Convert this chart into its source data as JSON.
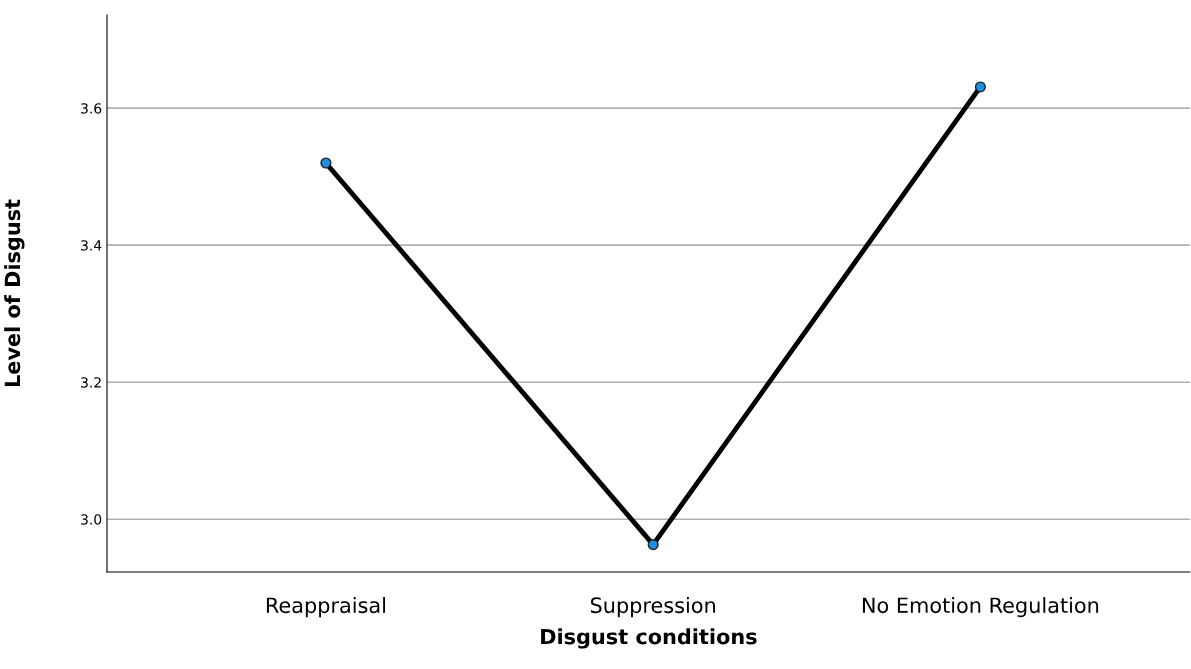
{
  "chart_data": {
    "type": "line",
    "xlabel": "Disgust conditions",
    "ylabel": "Level of Disgust",
    "categories": [
      "Reappraisal",
      "Suppression",
      "No Emotion Regulation"
    ],
    "series": [
      {
        "color": "#000000",
        "values": [
          3.52,
          2.963,
          3.631
        ]
      }
    ],
    "ylim": [
      2.923,
      3.736
    ],
    "yticks": [
      {
        "value": 3.0,
        "label": "3.0"
      },
      {
        "value": 3.2,
        "label": "3.2"
      },
      {
        "value": 3.4,
        "label": "3.4"
      },
      {
        "value": 3.6,
        "label": "3.6"
      }
    ],
    "grid": "y",
    "marker": "circle",
    "line_style": "solid"
  }
}
